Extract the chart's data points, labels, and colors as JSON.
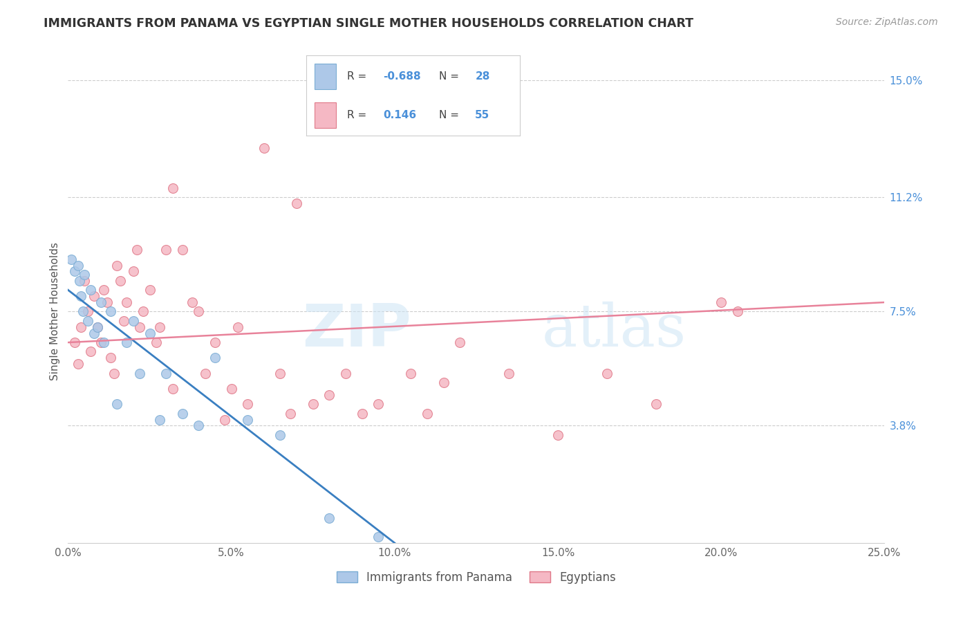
{
  "title": "IMMIGRANTS FROM PANAMA VS EGYPTIAN SINGLE MOTHER HOUSEHOLDS CORRELATION CHART",
  "source": "Source: ZipAtlas.com",
  "xlabel_vals": [
    0.0,
    5.0,
    10.0,
    15.0,
    20.0,
    25.0
  ],
  "ylabel": "Single Mother Households",
  "ylabel_vals_right": [
    3.8,
    7.5,
    11.2,
    15.0
  ],
  "xlim": [
    0.0,
    25.0
  ],
  "ylim": [
    0.0,
    15.0
  ],
  "panama_color": "#adc8e8",
  "panama_edge_color": "#7aadd4",
  "egypt_color": "#f5b8c4",
  "egypt_edge_color": "#e07888",
  "panama_R": -0.688,
  "panama_N": 28,
  "egypt_R": 0.146,
  "egypt_N": 55,
  "panama_line_color": "#3a7fc1",
  "egypt_line_color": "#e8829a",
  "watermark_zip": "ZIP",
  "watermark_atlas": "atlas",
  "panama_points_x": [
    0.1,
    0.2,
    0.3,
    0.35,
    0.4,
    0.45,
    0.5,
    0.6,
    0.7,
    0.8,
    0.9,
    1.0,
    1.1,
    1.3,
    1.5,
    1.8,
    2.0,
    2.2,
    2.5,
    2.8,
    3.0,
    3.5,
    4.0,
    4.5,
    5.5,
    6.5,
    8.0,
    9.5
  ],
  "panama_points_y": [
    9.2,
    8.8,
    9.0,
    8.5,
    8.0,
    7.5,
    8.7,
    7.2,
    8.2,
    6.8,
    7.0,
    7.8,
    6.5,
    7.5,
    4.5,
    6.5,
    7.2,
    5.5,
    6.8,
    4.0,
    5.5,
    4.2,
    3.8,
    6.0,
    4.0,
    3.5,
    0.8,
    0.2
  ],
  "egypt_points_x": [
    0.2,
    0.3,
    0.4,
    0.5,
    0.6,
    0.7,
    0.8,
    0.9,
    1.0,
    1.1,
    1.2,
    1.3,
    1.4,
    1.5,
    1.6,
    1.7,
    1.8,
    2.0,
    2.1,
    2.2,
    2.3,
    2.5,
    2.7,
    2.8,
    3.0,
    3.2,
    3.5,
    3.8,
    4.0,
    4.2,
    4.5,
    5.0,
    5.5,
    6.0,
    6.5,
    7.0,
    7.5,
    8.0,
    8.5,
    9.0,
    10.5,
    11.5,
    12.0,
    13.5,
    15.0,
    16.5,
    18.0,
    20.0,
    5.2,
    6.8,
    9.5,
    11.0,
    3.2,
    4.8,
    20.5
  ],
  "egypt_points_y": [
    6.5,
    5.8,
    7.0,
    8.5,
    7.5,
    6.2,
    8.0,
    7.0,
    6.5,
    8.2,
    7.8,
    6.0,
    5.5,
    9.0,
    8.5,
    7.2,
    7.8,
    8.8,
    9.5,
    7.0,
    7.5,
    8.2,
    6.5,
    7.0,
    9.5,
    11.5,
    9.5,
    7.8,
    7.5,
    5.5,
    6.5,
    5.0,
    4.5,
    12.8,
    5.5,
    11.0,
    4.5,
    4.8,
    5.5,
    4.2,
    5.5,
    5.2,
    6.5,
    5.5,
    3.5,
    5.5,
    4.5,
    7.8,
    7.0,
    4.2,
    4.5,
    4.2,
    5.0,
    4.0,
    7.5
  ]
}
